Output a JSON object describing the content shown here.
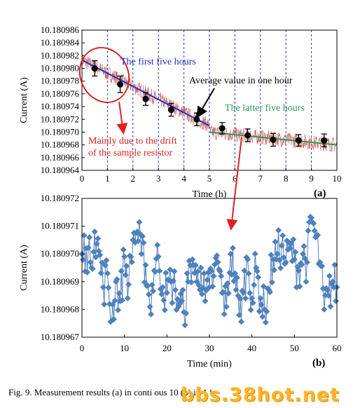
{
  "chart_data": [
    {
      "panel": "(a)",
      "type": "scatter",
      "xlabel": "Time (h)",
      "ylabel": "Current (A)",
      "xlim": [
        0,
        10
      ],
      "ylim": [
        10.180964,
        10.180986
      ],
      "x_ticks": [
        "0",
        "1",
        "2",
        "3",
        "4",
        "5",
        "6",
        "7",
        "8",
        "9",
        "10"
      ],
      "y_ticks": [
        "10.180964",
        "10.180966",
        "10.180968",
        "10.180970",
        "10.180972",
        "10.180974",
        "10.180976",
        "10.180978",
        "10.180980",
        "10.180982",
        "10.180984",
        "10.180986"
      ],
      "hour_grid": "dashed vertical lines at each hour",
      "series": [
        {
          "marker": "filled circle with error bar",
          "color": "#000000",
          "x": [
            0.5,
            1.5,
            2.5,
            3.5,
            4.5,
            5.5,
            6.5,
            7.5,
            8.5,
            9.5
          ],
          "y": [
            10.18098,
            10.1809775,
            10.1809752,
            10.1809735,
            10.180972,
            10.1809706,
            10.1809695,
            10.1809688,
            10.1809687,
            10.1809687
          ],
          "yerr": [
            1.2e-06,
            1.3e-06,
            1e-06,
            1e-06,
            1e-06,
            9e-07,
            1e-06,
            1e-06,
            9e-07,
            1e-06
          ]
        }
      ],
      "fit_lines": [
        {
          "color": "#2130c8",
          "x": [
            0,
            5
          ],
          "y": [
            10.1809813,
            10.180971
          ]
        },
        {
          "color": "#2a9a55",
          "x": [
            5,
            10
          ],
          "y": [
            10.18097,
            10.180968
          ]
        }
      ],
      "raw_trace_color": "#c0504d",
      "annotations": [
        {
          "text": "The first five hours",
          "color": "#2130c8"
        },
        {
          "text": "Average value in one hour",
          "color": "#000000"
        },
        {
          "text": "The latter five hours",
          "color": "#2a9a55"
        },
        {
          "text": "Mainly due to the drift",
          "color": "#e02020"
        },
        {
          "text": "of the sample resistor",
          "color": "#e02020"
        }
      ]
    },
    {
      "panel": "(b)",
      "type": "line",
      "marker": "diamond",
      "color": "#4f81bd",
      "xlabel": "Time (min)",
      "ylabel": "Current (A)",
      "xlim": [
        0,
        60
      ],
      "ylim": [
        10.180967,
        10.180972
      ],
      "x_ticks": [
        "0",
        "10",
        "20",
        "30",
        "40",
        "50",
        "60"
      ],
      "y_ticks": [
        "10.180967",
        "10.180968",
        "10.180969",
        "10.180970",
        "10.180971",
        "10.180972"
      ],
      "series": [
        {
          "x": [
            0,
            1,
            2,
            3,
            4,
            5,
            6,
            7,
            8,
            9,
            10,
            11,
            12,
            13,
            14,
            15,
            16,
            17,
            18,
            19,
            20,
            21,
            22,
            23,
            24,
            25,
            26,
            27,
            28,
            29,
            30,
            31,
            32,
            33,
            34,
            35,
            36,
            37,
            38,
            39,
            40,
            41,
            42,
            43,
            44,
            45,
            46,
            47,
            48,
            49,
            50,
            51,
            52,
            53,
            54,
            55,
            56,
            57,
            58,
            59,
            60
          ],
          "y": [
            10.18097,
            10.1809702,
            10.1809697,
            10.1809708,
            10.1809701,
            10.1809688,
            10.1809693,
            10.1809676,
            10.180969,
            10.1809683,
            10.1809699,
            10.1809689,
            10.1809705,
            10.1809708,
            10.18097,
            10.1809696,
            10.1809681,
            10.1809694,
            10.1809699,
            10.1809688,
            10.1809686,
            10.180969,
            10.1809687,
            10.1809682,
            10.1809679,
            10.180969,
            10.1809698,
            10.180969,
            10.1809695,
            10.1809683,
            10.1809688,
            10.1809692,
            10.1809697,
            10.1809686,
            10.1809681,
            10.18097,
            10.1809693,
            10.1809678,
            10.1809686,
            10.1809698,
            10.1809684,
            10.1809695,
            10.1809684,
            10.180968,
            10.1809687,
            10.1809698,
            10.18097,
            10.1809703,
            10.1809697,
            10.1809702,
            10.1809698,
            10.1809694,
            10.18097,
            10.1809697,
            10.1809713,
            10.1809706,
            10.1809697,
            10.180968,
            10.1809685,
            10.180969,
            10.1809688
          ]
        }
      ]
    }
  ],
  "caption": "Fig. 9.    Measurement results (a) in conti    ous 10    (b) in 1    h.",
  "watermark": "bbs.38hot.net"
}
